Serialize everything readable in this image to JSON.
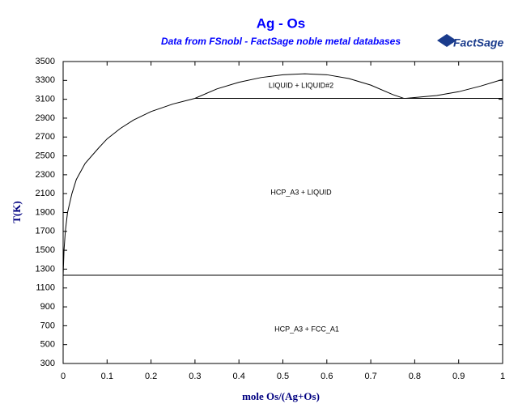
{
  "chart_data": {
    "type": "line",
    "title": "Ag - Os",
    "subtitle": "Data from FSnobl - FactSage noble metal databases",
    "logo": "FactSage",
    "x_label": "mole Os/(Ag+Os)",
    "y_label": "T(K)",
    "annotations": [
      "LIQUID + LIQUID#2",
      "HCP_A3 + LIQUID",
      "HCP_A3 + FCC_A1"
    ],
    "xlim": [
      0,
      1
    ],
    "xticks": [
      0,
      0.1,
      0.2,
      0.3,
      0.4,
      0.5,
      0.6,
      0.7,
      0.8,
      0.9,
      1
    ],
    "ylim": [
      300,
      3500
    ],
    "yticks": [
      300,
      500,
      700,
      900,
      1100,
      1300,
      1500,
      1700,
      1900,
      2100,
      2300,
      2500,
      2700,
      2900,
      3100,
      3300,
      3500
    ],
    "series": [
      {
        "color": "#000000",
        "x": [
          0,
          0.002,
          0.005,
          0.01,
          0.02,
          0.03,
          0.05,
          0.08,
          0.1,
          0.13,
          0.16,
          0.2,
          0.25,
          0.3
        ],
        "values": [
          1235,
          1500,
          1700,
          1900,
          2100,
          2250,
          2420,
          2580,
          2680,
          2790,
          2880,
          2970,
          3050,
          3110
        ]
      },
      {
        "color": "#000000",
        "x": [
          0.3,
          0.35,
          0.4,
          0.45,
          0.5,
          0.55,
          0.6,
          0.65,
          0.7,
          0.75,
          0.775
        ],
        "values": [
          3110,
          3210,
          3280,
          3330,
          3360,
          3370,
          3360,
          3320,
          3250,
          3150,
          3110
        ]
      },
      {
        "color": "#000000",
        "x": [
          0.78,
          0.85,
          0.9,
          0.95,
          1
        ],
        "values": [
          3110,
          3140,
          3180,
          3240,
          3310
        ]
      },
      {
        "color": "#000000",
        "x": [
          0.3,
          1
        ],
        "values": [
          3110,
          3110
        ]
      },
      {
        "color": "#000000",
        "x": [
          0,
          1
        ],
        "values": [
          1235,
          1235
        ]
      }
    ]
  }
}
